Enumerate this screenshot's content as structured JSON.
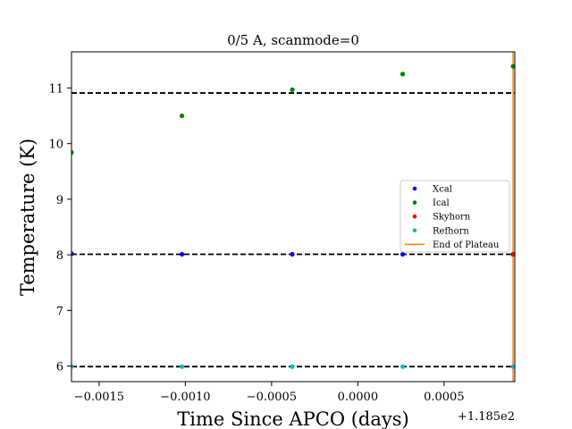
{
  "chart_data": {
    "type": "scatter",
    "title": "0/5 A, scanmode=0",
    "xlabel": "Time Since APCO (days)",
    "ylabel": "Temperature (K)",
    "x_offset_label": "+1.185e2",
    "xlim": [
      -0.00166,
      0.00091
    ],
    "ylim": [
      5.72,
      11.65
    ],
    "xticks": [
      -0.0015,
      -0.001,
      -0.0005,
      0.0,
      0.0005
    ],
    "xtick_labels": [
      "−0.0015",
      "−0.0010",
      "−0.0005",
      "0.0000",
      "0.0005"
    ],
    "yticks": [
      6,
      7,
      8,
      9,
      10,
      11
    ],
    "ytick_labels": [
      "6",
      "7",
      "8",
      "9",
      "10",
      "11"
    ],
    "grid": false,
    "legend_position": "center-right",
    "hlines": [
      10.91,
      8.01,
      5.99
    ],
    "vline": {
      "name": "End of Plateau",
      "x": 0.0009,
      "color": "#ff7f0e"
    },
    "series": [
      {
        "name": "Xcal",
        "color": "#0000ff",
        "x": [
          -0.00166,
          -0.00102,
          -0.00038,
          0.00026,
          0.0009
        ],
        "y": [
          8.02,
          8.01,
          8.01,
          8.01,
          8.01
        ]
      },
      {
        "name": "Ical",
        "color": "#008000",
        "x": [
          -0.00166,
          -0.00102,
          -0.00038,
          0.00026,
          0.0009
        ],
        "y": [
          9.84,
          10.5,
          10.97,
          11.25,
          11.39
        ]
      },
      {
        "name": "Skyhorn",
        "color": "#ff0000",
        "x": [
          0.0009
        ],
        "y": [
          8.01
        ]
      },
      {
        "name": "Refhorn",
        "color": "#00bfbf",
        "x": [
          -0.00166,
          -0.00102,
          -0.00038,
          0.00026,
          0.0009
        ],
        "y": [
          5.99,
          5.99,
          5.99,
          5.99,
          5.99
        ]
      }
    ]
  }
}
